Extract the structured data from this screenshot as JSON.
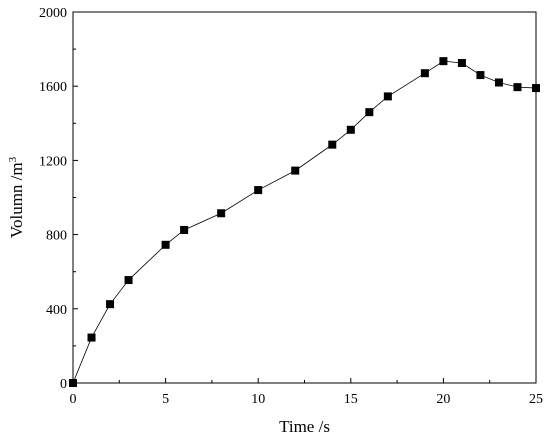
{
  "chart_data": {
    "type": "line",
    "title": "",
    "xlabel": "Time /s",
    "ylabel_main": "Volumn /m",
    "ylabel_sup": "3",
    "xlim": [
      0,
      25
    ],
    "ylim": [
      0,
      2000
    ],
    "xticks": [
      0,
      5,
      10,
      15,
      20,
      25
    ],
    "yticks": [
      0,
      400,
      800,
      1200,
      1600,
      2000
    ],
    "grid": false,
    "marker": "square",
    "series": [
      {
        "x": [
          0,
          1,
          2,
          3,
          5,
          6,
          8,
          10,
          12,
          14,
          15,
          16,
          17,
          19,
          20,
          21,
          22,
          23,
          24,
          25
        ],
        "y": [
          0,
          245,
          425,
          555,
          745,
          825,
          915,
          1040,
          1145,
          1285,
          1365,
          1460,
          1545,
          1670,
          1735,
          1725,
          1660,
          1620,
          1595,
          1590
        ]
      }
    ]
  }
}
